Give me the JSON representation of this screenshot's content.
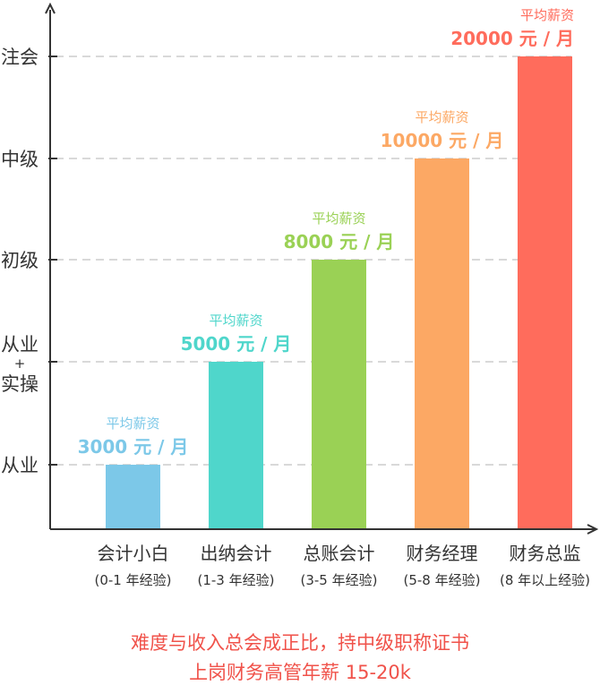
{
  "chart_data": {
    "type": "bar",
    "y_levels": [
      "从业",
      "从业+实操",
      "初级",
      "中级",
      "注会"
    ],
    "categories": [
      {
        "name": "会计小白",
        "note": "(0-1 年经验)"
      },
      {
        "name": "出纳会计",
        "note": "(1-3 年经验)"
      },
      {
        "name": "总账会计",
        "note": "(3-5 年经验)"
      },
      {
        "name": "财务经理",
        "note": "(5-8 年经验)"
      },
      {
        "name": "财务总监",
        "note": "(8 年以上经验)"
      }
    ],
    "level_index": [
      0,
      1,
      2,
      3,
      4
    ],
    "salary_label": "平均薪资",
    "salaries": [
      3000,
      5000,
      8000,
      10000,
      20000
    ],
    "salary_unit": "元 / 月",
    "colors": [
      "#7cc8e8",
      "#4fd6cb",
      "#9ad155",
      "#fca864",
      "#ff6c5c"
    ],
    "grid": "dashed horizontal at each level"
  },
  "footer": {
    "line1": "难度与收入总会成正比，持中级职称证书",
    "line2": "上岗财务高管年薪 15-20k"
  }
}
